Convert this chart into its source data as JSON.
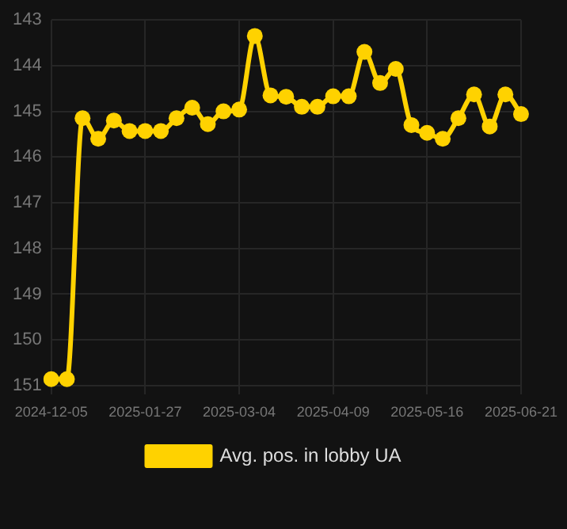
{
  "chart_data": {
    "type": "line",
    "categories": [
      "2024-12-05",
      null,
      null,
      null,
      null,
      null,
      "2025-01-27",
      null,
      null,
      null,
      null,
      null,
      "2025-03-04",
      null,
      null,
      null,
      null,
      null,
      "2025-04-09",
      null,
      null,
      null,
      null,
      null,
      "2025-05-16",
      null,
      null,
      null,
      null,
      null,
      "2025-06-21"
    ],
    "series": [
      {
        "name": "Avg. pos. in lobby UA",
        "color": "#ffd200",
        "values": [
          150.86,
          150.86,
          145.15,
          145.6,
          145.2,
          145.43,
          145.43,
          145.43,
          145.15,
          144.92,
          145.28,
          145.0,
          144.96,
          143.35,
          144.65,
          144.68,
          144.9,
          144.9,
          144.67,
          144.67,
          143.7,
          144.38,
          144.07,
          145.3,
          145.47,
          145.6,
          145.15,
          144.63,
          145.33,
          144.63,
          145.06
        ]
      }
    ],
    "ylim": [
      151.2,
      143
    ],
    "yticks": [
      143,
      144,
      145,
      146,
      147,
      148,
      149,
      150,
      151
    ],
    "grid": true,
    "legend": "bottom",
    "marker": "circle",
    "line_style": "solid"
  }
}
